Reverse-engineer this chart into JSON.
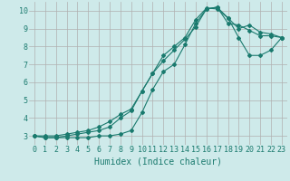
{
  "title": "",
  "xlabel": "Humidex (Indice chaleur)",
  "ylabel": "",
  "bg_color": "#ceeaea",
  "grid_color": "#b0b0b0",
  "line_color": "#1a7a6e",
  "xlim": [
    -0.5,
    23.5
  ],
  "ylim": [
    2.5,
    10.5
  ],
  "xticks": [
    0,
    1,
    2,
    3,
    4,
    5,
    6,
    7,
    8,
    9,
    10,
    11,
    12,
    13,
    14,
    15,
    16,
    17,
    18,
    19,
    20,
    21,
    22,
    23
  ],
  "yticks": [
    3,
    4,
    5,
    6,
    7,
    8,
    9,
    10
  ],
  "curve1_x": [
    0,
    1,
    2,
    3,
    4,
    5,
    6,
    7,
    8,
    9,
    10,
    11,
    12,
    13,
    14,
    15,
    16,
    17,
    18,
    19,
    20,
    21,
    22,
    23
  ],
  "curve1_y": [
    3.0,
    2.9,
    2.9,
    2.9,
    2.9,
    2.9,
    3.0,
    3.0,
    3.1,
    3.3,
    4.3,
    5.6,
    6.6,
    7.0,
    8.1,
    9.3,
    10.1,
    10.2,
    9.3,
    9.2,
    8.9,
    8.6,
    8.6,
    8.5
  ],
  "curve2_x": [
    0,
    1,
    2,
    3,
    4,
    5,
    6,
    7,
    8,
    9,
    10,
    11,
    12,
    13,
    14,
    15,
    16,
    17,
    18,
    19,
    20,
    21,
    22,
    23
  ],
  "curve2_y": [
    3.0,
    3.0,
    3.0,
    3.1,
    3.2,
    3.3,
    3.5,
    3.8,
    4.2,
    4.5,
    5.5,
    6.5,
    7.2,
    7.8,
    8.4,
    9.1,
    10.1,
    10.2,
    9.6,
    8.5,
    7.5,
    7.5,
    7.8,
    8.5
  ],
  "curve3_x": [
    0,
    1,
    2,
    3,
    4,
    5,
    6,
    7,
    8,
    9,
    10,
    11,
    12,
    13,
    14,
    15,
    16,
    17,
    18,
    19,
    20,
    21,
    22,
    23
  ],
  "curve3_y": [
    3.0,
    2.9,
    2.9,
    3.0,
    3.1,
    3.2,
    3.3,
    3.5,
    4.0,
    4.4,
    5.5,
    6.5,
    7.5,
    8.0,
    8.5,
    9.5,
    10.15,
    10.1,
    9.6,
    9.0,
    9.2,
    8.8,
    8.7,
    8.5
  ],
  "marker": "D",
  "markersize": 2.0,
  "linewidth": 0.8,
  "xlabel_fontsize": 7,
  "tick_fontsize": 6
}
